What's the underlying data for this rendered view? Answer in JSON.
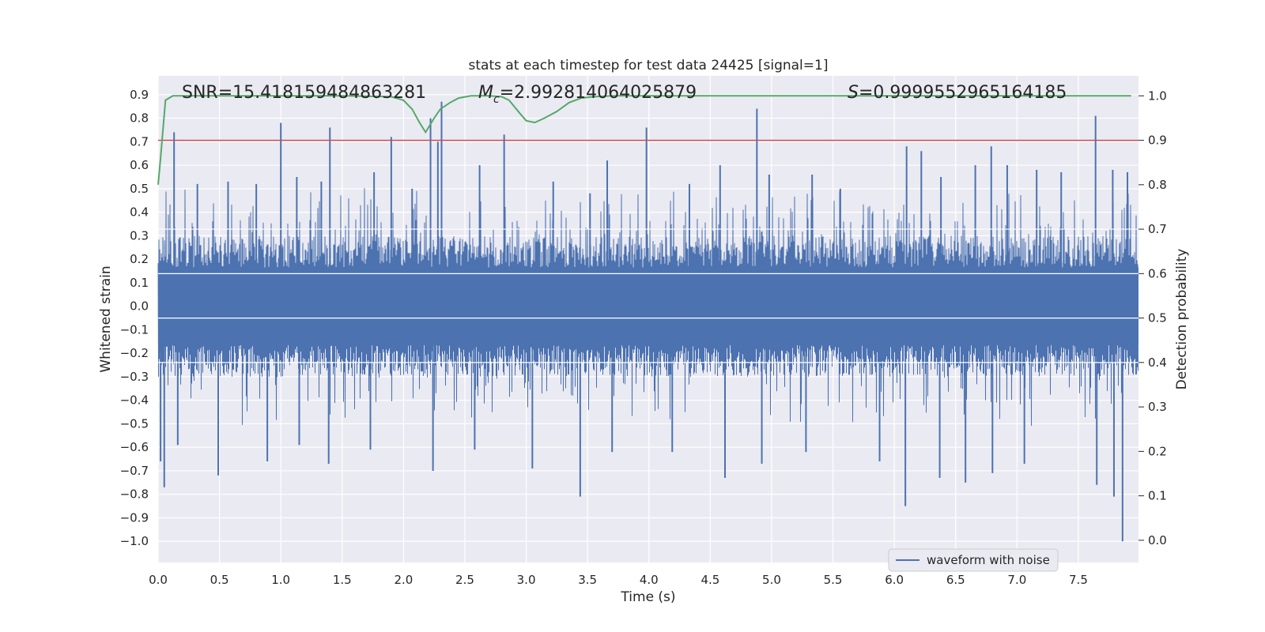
{
  "chart_data": {
    "type": "line",
    "title": "stats at each timestep for test data 24425 [signal=1]",
    "xlabel": "Time (s)",
    "ylabel_left": "Whitened strain",
    "ylabel_right": "Detection probability",
    "xlim": [
      0.0,
      7.99
    ],
    "ylim_left": [
      -1.09,
      0.98
    ],
    "ylim_right": [
      -0.05,
      1.045
    ],
    "x_ticks": [
      "0.0",
      "0.5",
      "1.0",
      "1.5",
      "2.0",
      "2.5",
      "3.0",
      "3.5",
      "4.0",
      "4.5",
      "5.0",
      "5.5",
      "6.0",
      "6.5",
      "7.0",
      "7.5"
    ],
    "y_ticks_left": [
      "0.9",
      "0.8",
      "0.7",
      "0.6",
      "0.5",
      "0.4",
      "0.3",
      "0.2",
      "0.1",
      "0.0",
      "-0.1",
      "-0.2",
      "-0.3",
      "-0.4",
      "-0.5",
      "-0.6",
      "-0.7",
      "-0.8",
      "-0.9",
      "-1.0"
    ],
    "y_ticks_right": [
      "1.0",
      "0.9",
      "0.8",
      "0.7",
      "0.6",
      "0.5",
      "0.4",
      "0.3",
      "0.2",
      "0.1",
      "0.0"
    ],
    "grid": true,
    "legend": {
      "position": "lower-right",
      "entries": [
        "waveform with noise"
      ]
    },
    "annotations": {
      "snr": "SNR=15.418159484863281",
      "mc_symbol": "M",
      "mc_sub": "c",
      "mc_value": "=2.992814064025879",
      "s_symbol": "S",
      "s_value": "=0.9999552965164185"
    },
    "threshold": {
      "axis": "right",
      "value": 0.9,
      "color": "#c44e52"
    },
    "series": [
      {
        "name": "waveform with noise",
        "axis": "left",
        "color": "#4c72b0",
        "envelope": {
          "typical_amplitude": 0.3,
          "max": 0.87,
          "min": -1.0
        },
        "spikes_up": [
          [
            0.13,
            0.74
          ],
          [
            0.32,
            0.52
          ],
          [
            0.57,
            0.53
          ],
          [
            0.8,
            0.52
          ],
          [
            1.0,
            0.78
          ],
          [
            1.13,
            0.55
          ],
          [
            1.33,
            0.53
          ],
          [
            1.4,
            0.76
          ],
          [
            1.76,
            0.57
          ],
          [
            1.9,
            0.72
          ],
          [
            2.07,
            0.5
          ],
          [
            2.22,
            0.8
          ],
          [
            2.28,
            0.7
          ],
          [
            2.31,
            0.87
          ],
          [
            2.62,
            0.6
          ],
          [
            2.82,
            0.73
          ],
          [
            3.22,
            0.53
          ],
          [
            3.52,
            0.48
          ],
          [
            3.66,
            0.62
          ],
          [
            3.98,
            0.76
          ],
          [
            4.33,
            0.52
          ],
          [
            4.58,
            0.6
          ],
          [
            4.88,
            0.84
          ],
          [
            4.98,
            0.56
          ],
          [
            5.33,
            0.56
          ],
          [
            5.56,
            0.5
          ],
          [
            6.1,
            0.68
          ],
          [
            6.22,
            0.66
          ],
          [
            6.38,
            0.55
          ],
          [
            6.66,
            0.6
          ],
          [
            6.79,
            0.68
          ],
          [
            6.92,
            0.6
          ],
          [
            7.16,
            0.58
          ],
          [
            7.36,
            0.57
          ],
          [
            7.64,
            0.81
          ],
          [
            7.78,
            0.58
          ],
          [
            7.9,
            0.57
          ]
        ],
        "spikes_down": [
          [
            0.02,
            -0.66
          ],
          [
            0.05,
            -0.77
          ],
          [
            0.16,
            -0.59
          ],
          [
            0.49,
            -0.72
          ],
          [
            0.89,
            -0.66
          ],
          [
            1.15,
            -0.59
          ],
          [
            1.39,
            -0.67
          ],
          [
            1.73,
            -0.61
          ],
          [
            2.24,
            -0.7
          ],
          [
            2.58,
            -0.61
          ],
          [
            3.05,
            -0.69
          ],
          [
            3.44,
            -0.81
          ],
          [
            3.7,
            -0.62
          ],
          [
            4.19,
            -0.62
          ],
          [
            4.62,
            -0.73
          ],
          [
            4.92,
            -0.67
          ],
          [
            5.28,
            -0.62
          ],
          [
            5.88,
            -0.66
          ],
          [
            6.09,
            -0.85
          ],
          [
            6.37,
            -0.73
          ],
          [
            6.58,
            -0.75
          ],
          [
            6.8,
            -0.71
          ],
          [
            7.06,
            -0.67
          ],
          [
            7.65,
            -0.76
          ],
          [
            7.79,
            -0.81
          ],
          [
            7.86,
            -1.0
          ]
        ]
      },
      {
        "name": "detection probability",
        "axis": "right",
        "color": "#55a868",
        "x": [
          0.0,
          0.02,
          0.06,
          0.12,
          0.5,
          1.0,
          1.5,
          1.9,
          2.0,
          2.07,
          2.13,
          2.18,
          2.25,
          2.3,
          2.38,
          2.45,
          2.55,
          2.7,
          2.8,
          2.86,
          2.95,
          3.0,
          3.07,
          3.15,
          3.25,
          3.35,
          3.45,
          3.55,
          3.7,
          4.0,
          5.0,
          6.0,
          7.0,
          7.93
        ],
        "y": [
          0.8,
          0.86,
          0.99,
          1.0,
          1.0,
          1.0,
          1.0,
          0.998,
          0.99,
          0.97,
          0.94,
          0.918,
          0.95,
          0.97,
          0.985,
          0.995,
          1.0,
          1.0,
          0.998,
          0.99,
          0.96,
          0.944,
          0.94,
          0.95,
          0.965,
          0.985,
          0.995,
          0.998,
          1.0,
          1.0,
          1.0,
          1.0,
          1.0,
          1.0
        ]
      }
    ]
  }
}
